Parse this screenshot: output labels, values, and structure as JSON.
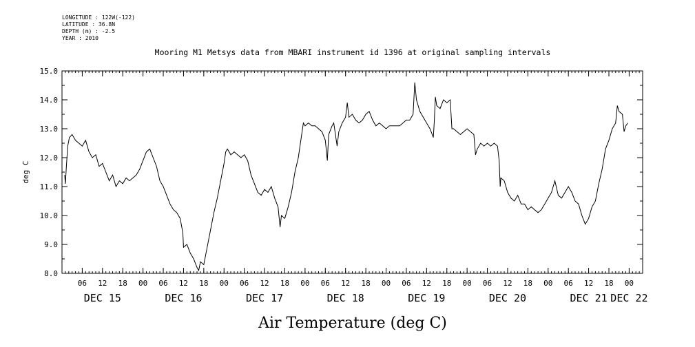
{
  "meta": {
    "longitude": "LONGITUDE : 122W(-122)",
    "latitude": "LATITUDE : 36.8N",
    "depth": "DEPTH (m) : -2.5",
    "year": "YEAR : 2010"
  },
  "chart_data": {
    "type": "line",
    "title": "Mooring M1 Metsys data from MBARI instrument id 1396 at original sampling intervals",
    "ylabel": "deg C",
    "xlabel": "Air Temperature (deg C)",
    "ylim": [
      8.0,
      15.0
    ],
    "yticks": [
      "8.0",
      "9.0",
      "10.0",
      "11.0",
      "12.0",
      "13.0",
      "14.0",
      "15.0"
    ],
    "xlim_hours": [
      0,
      172
    ],
    "hour_ticks": [
      {
        "h": 6,
        "label": "06"
      },
      {
        "h": 12,
        "label": "12"
      },
      {
        "h": 18,
        "label": "18"
      },
      {
        "h": 24,
        "label": "00"
      },
      {
        "h": 30,
        "label": "06"
      },
      {
        "h": 36,
        "label": "12"
      },
      {
        "h": 42,
        "label": "18"
      },
      {
        "h": 48,
        "label": "00"
      },
      {
        "h": 54,
        "label": "06"
      },
      {
        "h": 60,
        "label": "12"
      },
      {
        "h": 66,
        "label": "18"
      },
      {
        "h": 72,
        "label": "00"
      },
      {
        "h": 78,
        "label": "06"
      },
      {
        "h": 84,
        "label": "12"
      },
      {
        "h": 90,
        "label": "18"
      },
      {
        "h": 96,
        "label": "00"
      },
      {
        "h": 102,
        "label": "06"
      },
      {
        "h": 108,
        "label": "12"
      },
      {
        "h": 114,
        "label": "18"
      },
      {
        "h": 120,
        "label": "00"
      },
      {
        "h": 126,
        "label": "06"
      },
      {
        "h": 132,
        "label": "12"
      },
      {
        "h": 138,
        "label": "18"
      },
      {
        "h": 144,
        "label": "00"
      },
      {
        "h": 150,
        "label": "06"
      },
      {
        "h": 156,
        "label": "12"
      },
      {
        "h": 162,
        "label": "18"
      },
      {
        "h": 168,
        "label": "00"
      }
    ],
    "day_labels": [
      {
        "h": 12,
        "label": "DEC 15"
      },
      {
        "h": 36,
        "label": "DEC 16"
      },
      {
        "h": 60,
        "label": "DEC 17"
      },
      {
        "h": 84,
        "label": "DEC 18"
      },
      {
        "h": 108,
        "label": "DEC 19"
      },
      {
        "h": 132,
        "label": "DEC 20"
      },
      {
        "h": 156,
        "label": "DEC 21"
      },
      {
        "h": 168,
        "label": "DEC 22"
      }
    ],
    "series": [
      {
        "color": "#000000",
        "points": [
          [
            0.8,
            11.4
          ],
          [
            1.0,
            11.1
          ],
          [
            1.3,
            11.7
          ],
          [
            1.7,
            12.4
          ],
          [
            2.2,
            12.7
          ],
          [
            3.0,
            12.8
          ],
          [
            4.0,
            12.6
          ],
          [
            5.0,
            12.5
          ],
          [
            6.0,
            12.4
          ],
          [
            7.0,
            12.6
          ],
          [
            8.0,
            12.2
          ],
          [
            9.0,
            12.0
          ],
          [
            10.0,
            12.1
          ],
          [
            11.0,
            11.7
          ],
          [
            12.0,
            11.8
          ],
          [
            13.0,
            11.5
          ],
          [
            14.0,
            11.2
          ],
          [
            15.0,
            11.4
          ],
          [
            16.0,
            11.0
          ],
          [
            17.0,
            11.2
          ],
          [
            18.0,
            11.1
          ],
          [
            19.0,
            11.3
          ],
          [
            20.0,
            11.2
          ],
          [
            21.0,
            11.3
          ],
          [
            22.0,
            11.4
          ],
          [
            23.0,
            11.6
          ],
          [
            24.0,
            11.9
          ],
          [
            25.0,
            12.2
          ],
          [
            26.0,
            12.3
          ],
          [
            27.0,
            12.0
          ],
          [
            28.0,
            11.7
          ],
          [
            29.0,
            11.2
          ],
          [
            30.0,
            11.0
          ],
          [
            31.0,
            10.7
          ],
          [
            32.0,
            10.4
          ],
          [
            33.0,
            10.2
          ],
          [
            34.0,
            10.1
          ],
          [
            35.0,
            9.9
          ],
          [
            35.8,
            9.4
          ],
          [
            36.0,
            8.9
          ],
          [
            37.0,
            9.0
          ],
          [
            38.0,
            8.7
          ],
          [
            39.0,
            8.5
          ],
          [
            40.0,
            8.2
          ],
          [
            40.5,
            8.1
          ],
          [
            41.0,
            8.4
          ],
          [
            42.0,
            8.3
          ],
          [
            43.0,
            8.9
          ],
          [
            44.0,
            9.5
          ],
          [
            45.0,
            10.1
          ],
          [
            46.0,
            10.6
          ],
          [
            47.0,
            11.2
          ],
          [
            48.0,
            11.8
          ],
          [
            48.5,
            12.2
          ],
          [
            49.0,
            12.3
          ],
          [
            50.0,
            12.1
          ],
          [
            51.0,
            12.2
          ],
          [
            52.0,
            12.1
          ],
          [
            53.0,
            12.0
          ],
          [
            54.0,
            12.1
          ],
          [
            55.0,
            11.9
          ],
          [
            56.0,
            11.4
          ],
          [
            57.0,
            11.1
          ],
          [
            58.0,
            10.8
          ],
          [
            59.0,
            10.7
          ],
          [
            60.0,
            10.9
          ],
          [
            61.0,
            10.8
          ],
          [
            62.0,
            11.0
          ],
          [
            63.0,
            10.6
          ],
          [
            64.0,
            10.3
          ],
          [
            64.6,
            9.6
          ],
          [
            65.0,
            10.0
          ],
          [
            66.0,
            9.9
          ],
          [
            67.0,
            10.3
          ],
          [
            68.0,
            10.8
          ],
          [
            69.0,
            11.5
          ],
          [
            70.0,
            12.0
          ],
          [
            71.0,
            12.8
          ],
          [
            71.5,
            13.2
          ],
          [
            72.0,
            13.1
          ],
          [
            73.0,
            13.2
          ],
          [
            74.0,
            13.1
          ],
          [
            75.0,
            13.1
          ],
          [
            76.0,
            13.0
          ],
          [
            77.0,
            12.9
          ],
          [
            78.0,
            12.6
          ],
          [
            78.6,
            11.9
          ],
          [
            79.0,
            12.8
          ],
          [
            80.0,
            13.1
          ],
          [
            80.5,
            13.2
          ],
          [
            81.0,
            12.8
          ],
          [
            81.5,
            12.4
          ],
          [
            82.0,
            12.9
          ],
          [
            83.0,
            13.2
          ],
          [
            84.0,
            13.4
          ],
          [
            84.5,
            13.9
          ],
          [
            85.0,
            13.4
          ],
          [
            86.0,
            13.5
          ],
          [
            87.0,
            13.3
          ],
          [
            88.0,
            13.2
          ],
          [
            89.0,
            13.3
          ],
          [
            90.0,
            13.5
          ],
          [
            91.0,
            13.6
          ],
          [
            92.0,
            13.3
          ],
          [
            93.0,
            13.1
          ],
          [
            94.0,
            13.2
          ],
          [
            95.0,
            13.1
          ],
          [
            96.0,
            13.0
          ],
          [
            97.0,
            13.1
          ],
          [
            98.0,
            13.1
          ],
          [
            99.0,
            13.1
          ],
          [
            100.0,
            13.1
          ],
          [
            101.0,
            13.2
          ],
          [
            102.0,
            13.3
          ],
          [
            103.0,
            13.3
          ],
          [
            104.0,
            13.5
          ],
          [
            104.5,
            14.6
          ],
          [
            105.0,
            14.0
          ],
          [
            106.0,
            13.6
          ],
          [
            107.0,
            13.4
          ],
          [
            108.0,
            13.2
          ],
          [
            109.0,
            13.0
          ],
          [
            110.0,
            12.7
          ],
          [
            110.3,
            13.3
          ],
          [
            110.6,
            14.1
          ],
          [
            111.0,
            13.8
          ],
          [
            112.0,
            13.7
          ],
          [
            113.0,
            14.0
          ],
          [
            114.0,
            13.9
          ],
          [
            115.0,
            14.0
          ],
          [
            115.5,
            13.0
          ],
          [
            116.0,
            13.0
          ],
          [
            117.0,
            12.9
          ],
          [
            118.0,
            12.8
          ],
          [
            119.0,
            12.9
          ],
          [
            120.0,
            13.0
          ],
          [
            121.0,
            12.9
          ],
          [
            122.0,
            12.8
          ],
          [
            122.5,
            12.1
          ],
          [
            123.0,
            12.3
          ],
          [
            124.0,
            12.5
          ],
          [
            125.0,
            12.4
          ],
          [
            126.0,
            12.5
          ],
          [
            127.0,
            12.4
          ],
          [
            128.0,
            12.5
          ],
          [
            129.0,
            12.4
          ],
          [
            129.5,
            11.9
          ],
          [
            129.8,
            11.0
          ],
          [
            130.0,
            11.3
          ],
          [
            131.0,
            11.2
          ],
          [
            132.0,
            10.8
          ],
          [
            133.0,
            10.6
          ],
          [
            134.0,
            10.5
          ],
          [
            135.0,
            10.7
          ],
          [
            136.0,
            10.4
          ],
          [
            137.0,
            10.4
          ],
          [
            138.0,
            10.2
          ],
          [
            139.0,
            10.3
          ],
          [
            140.0,
            10.2
          ],
          [
            141.0,
            10.1
          ],
          [
            142.0,
            10.2
          ],
          [
            143.0,
            10.4
          ],
          [
            144.0,
            10.6
          ],
          [
            145.0,
            10.8
          ],
          [
            146.0,
            11.2
          ],
          [
            147.0,
            10.7
          ],
          [
            148.0,
            10.6
          ],
          [
            149.0,
            10.8
          ],
          [
            150.0,
            11.0
          ],
          [
            151.0,
            10.8
          ],
          [
            152.0,
            10.5
          ],
          [
            153.0,
            10.4
          ],
          [
            154.0,
            10.0
          ],
          [
            155.0,
            9.7
          ],
          [
            156.0,
            9.9
          ],
          [
            157.0,
            10.3
          ],
          [
            158.0,
            10.5
          ],
          [
            159.0,
            11.1
          ],
          [
            160.0,
            11.6
          ],
          [
            161.0,
            12.3
          ],
          [
            162.0,
            12.6
          ],
          [
            163.0,
            13.0
          ],
          [
            164.0,
            13.2
          ],
          [
            164.5,
            13.8
          ],
          [
            165.0,
            13.6
          ],
          [
            166.0,
            13.5
          ],
          [
            166.5,
            12.9
          ],
          [
            167.0,
            13.1
          ],
          [
            167.6,
            13.2
          ]
        ]
      }
    ]
  }
}
